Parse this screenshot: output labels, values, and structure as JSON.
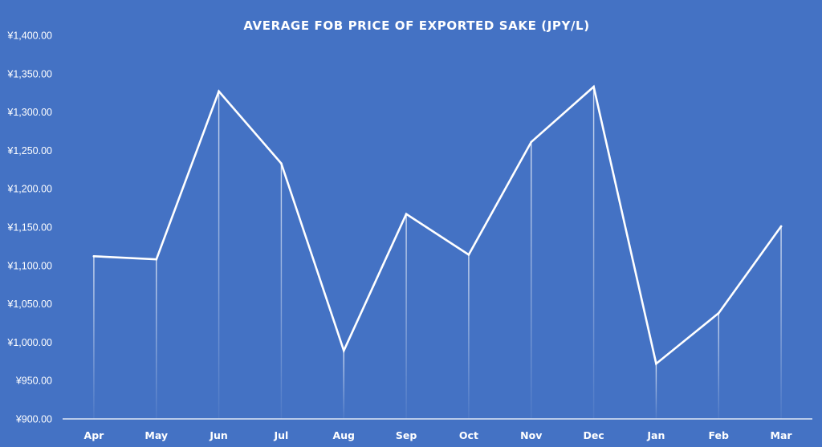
{
  "chart_data": {
    "type": "line",
    "title": "AVERAGE FOB PRICE OF EXPORTED SAKE  (JPY/L)",
    "categories": [
      "Apr",
      "May",
      "Jun",
      "Jul",
      "Aug",
      "Sep",
      "Oct",
      "Nov",
      "Dec",
      "Jan",
      "Feb",
      "Mar"
    ],
    "series": [
      {
        "values": [
          1112,
          1108,
          1327,
          1233,
          989,
          1167,
          1114,
          1261,
          1333,
          972,
          1038,
          1151
        ]
      }
    ],
    "ylim": [
      900,
      1400
    ],
    "yticks": [
      "¥900.00",
      "¥950.00",
      "¥1,000.00",
      "¥1,050.00",
      "¥1,100.00",
      "¥1,150.00",
      "¥1,200.00",
      "¥1,250.00",
      "¥1,300.00",
      "¥1,350.00",
      "¥1,400.00"
    ],
    "xlabel": "",
    "ylabel": "",
    "grid": false,
    "drop_lines": true,
    "colors": {
      "background": "#4472C4",
      "line": "#ffffff",
      "axis": "#ffffff"
    }
  }
}
